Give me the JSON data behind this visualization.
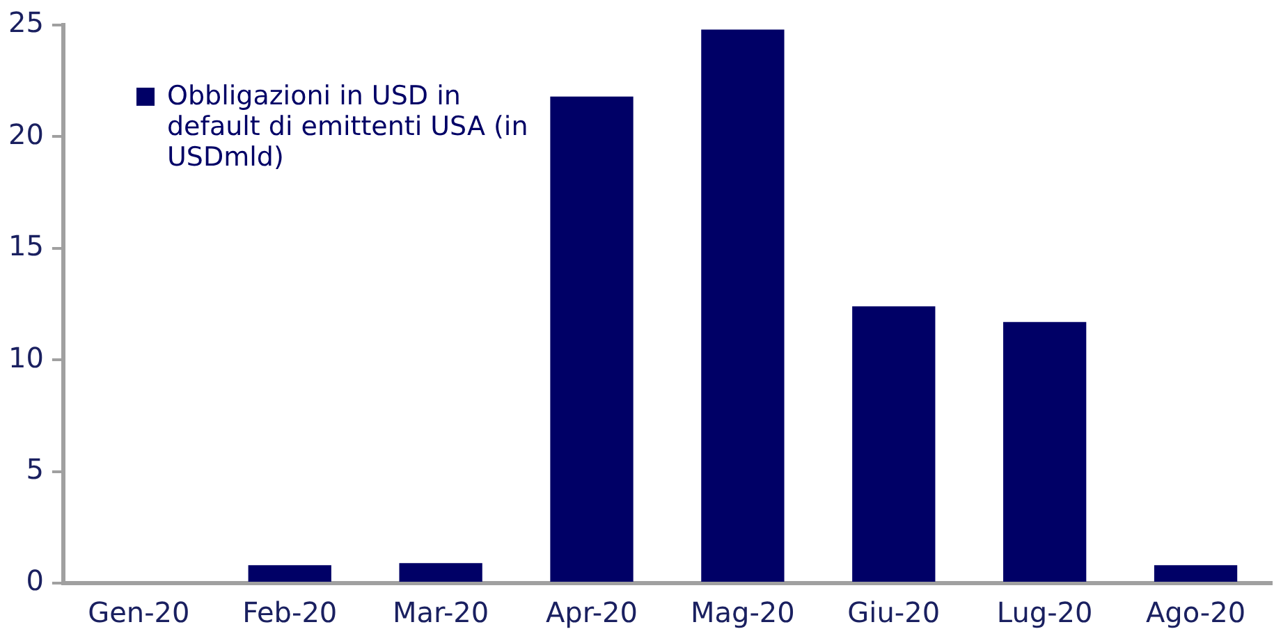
{
  "chart_data": {
    "type": "bar",
    "categories": [
      "Gen-20",
      "Feb-20",
      "Mar-20",
      "Apr-20",
      "Mag-20",
      "Giu-20",
      "Lug-20",
      "Ago-20"
    ],
    "series": [
      {
        "name": "Obbligazioni in USD in default di emittenti USA (in USDmld)",
        "color": "#000066",
        "values": [
          0,
          0.8,
          0.9,
          21.8,
          24.8,
          12.4,
          11.7,
          0.8
        ]
      }
    ],
    "ylim": [
      0,
      25
    ],
    "yticks": [
      0,
      5,
      10,
      15,
      20,
      25
    ],
    "grid": false,
    "legend": "top left"
  }
}
